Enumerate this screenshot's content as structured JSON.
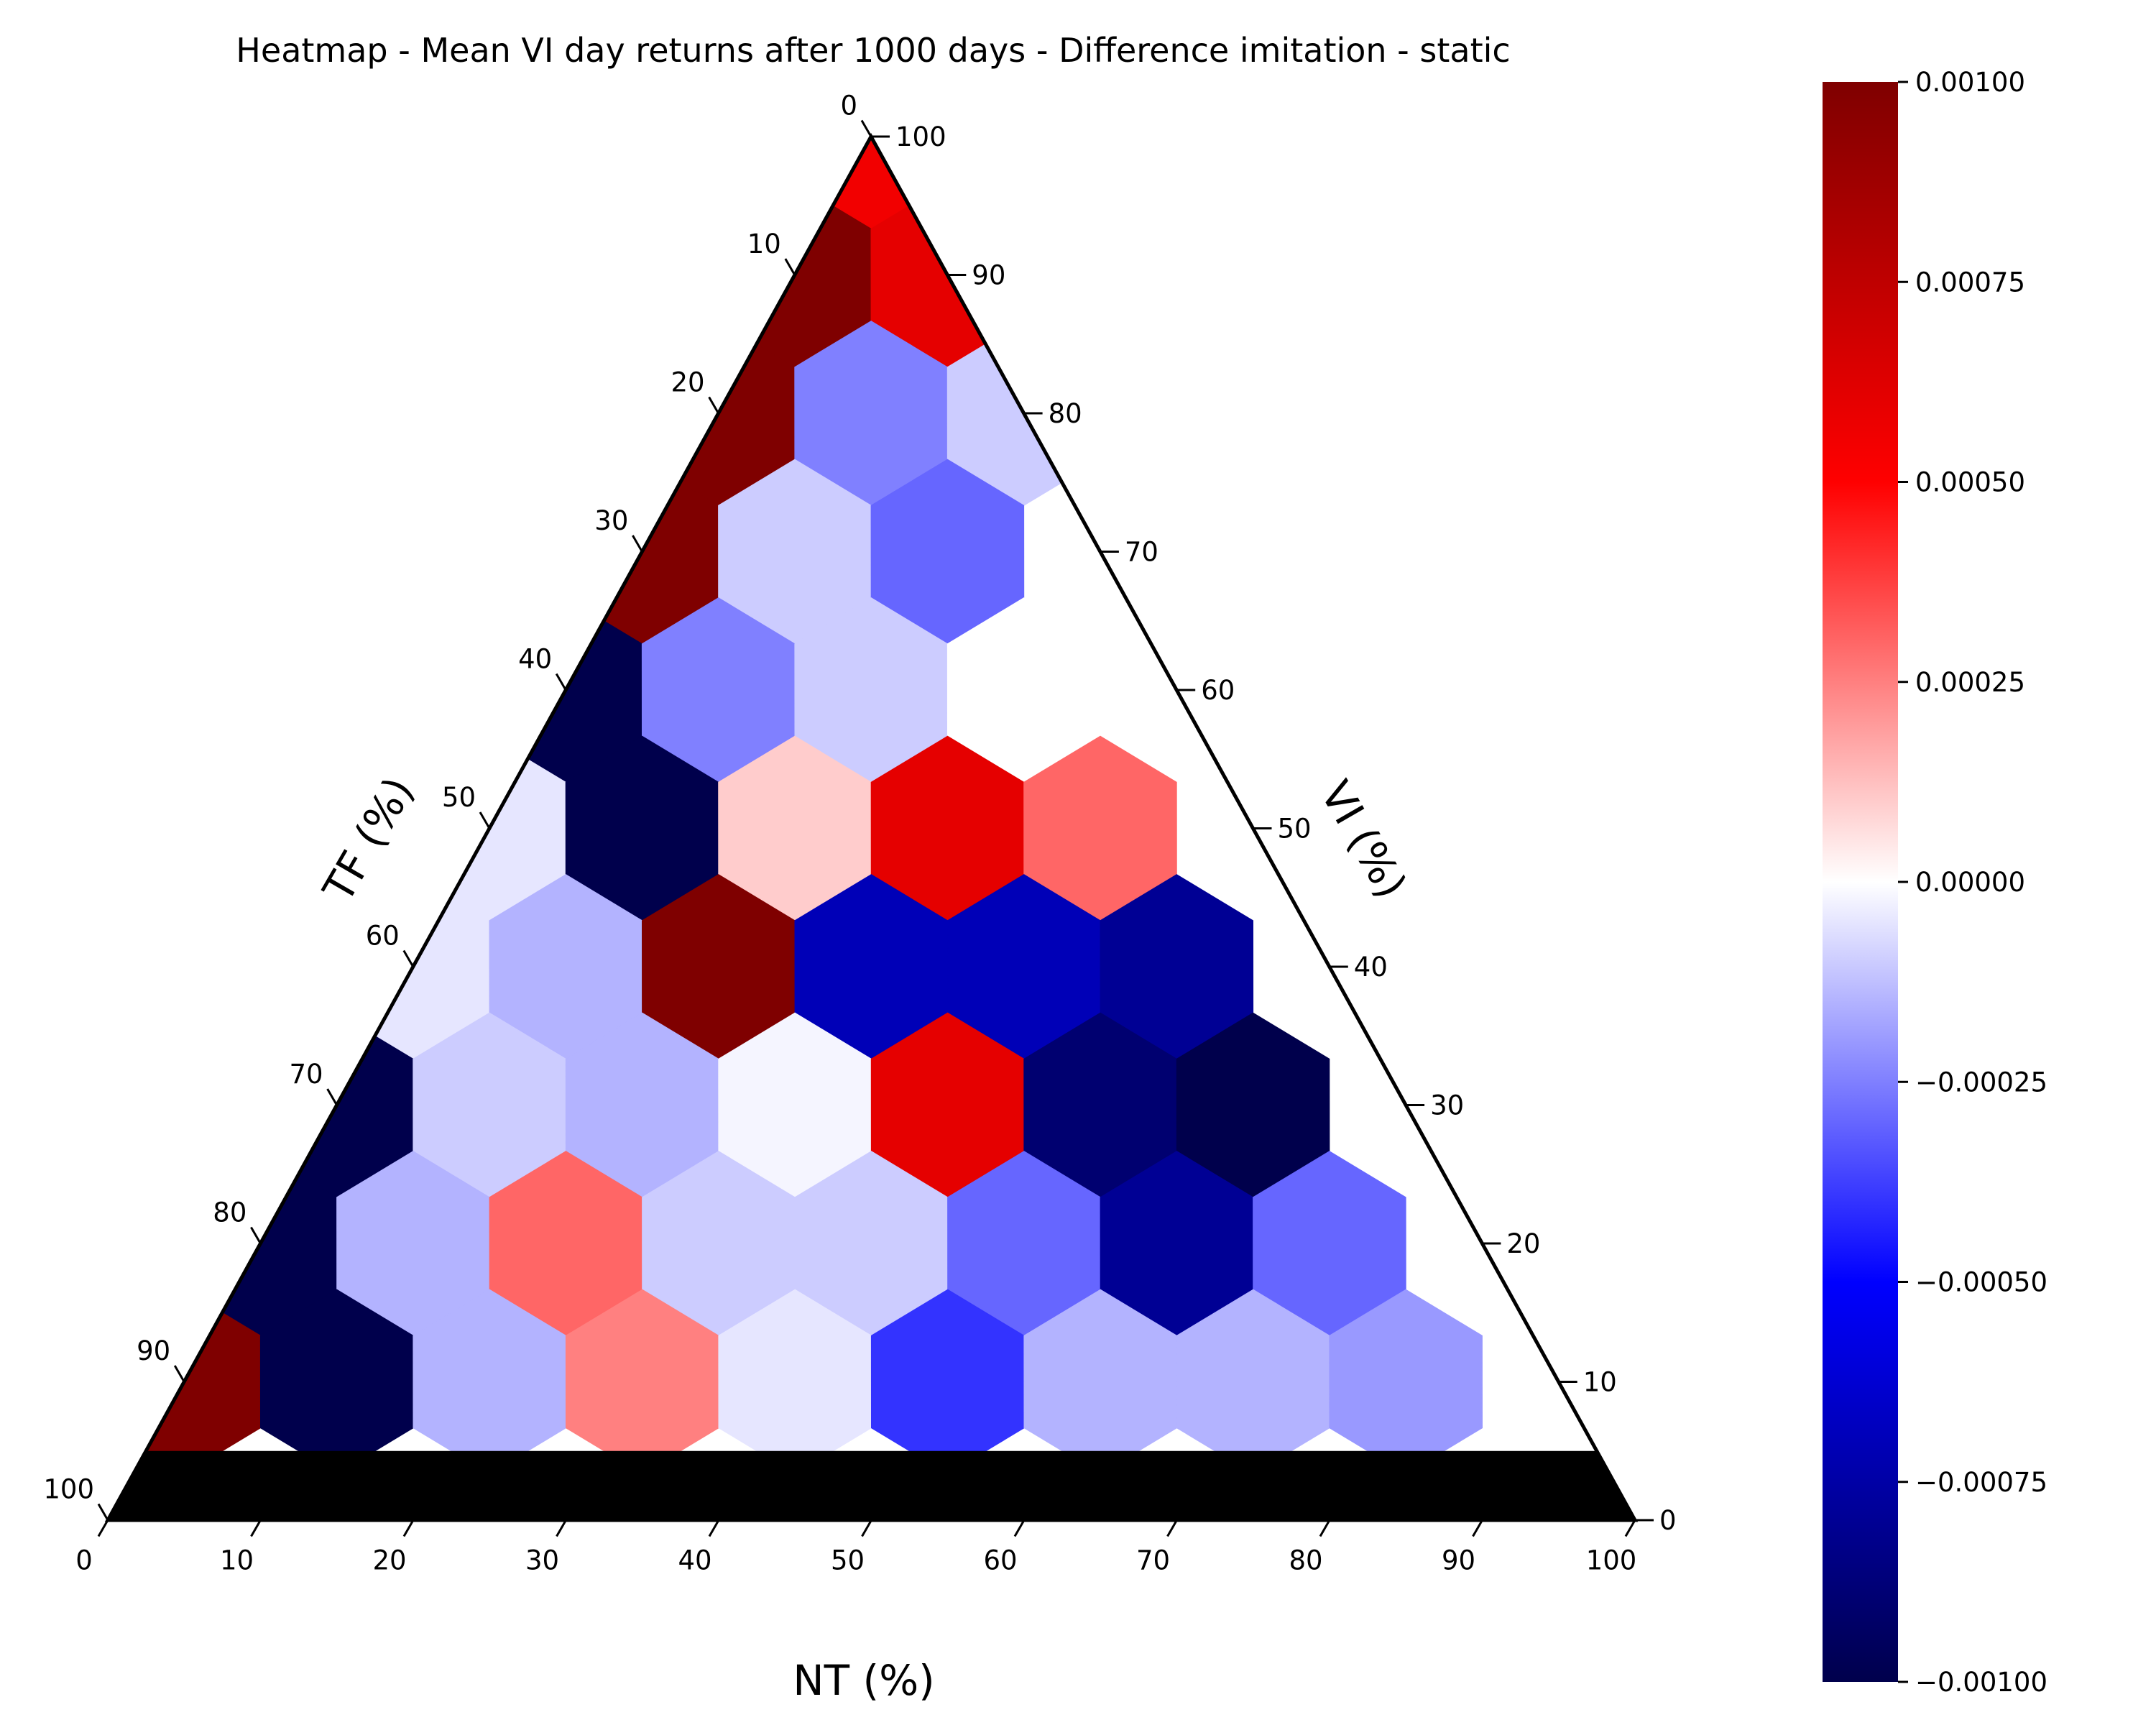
{
  "chart_data": {
    "type": "heatmap",
    "subtype": "ternary",
    "title": "Heatmap - Mean VI day returns after 1000 days - Difference imitation - static",
    "axes": {
      "bottom": {
        "label": "NT (%)",
        "ticks": [
          0,
          10,
          20,
          30,
          40,
          50,
          60,
          70,
          80,
          90,
          100
        ]
      },
      "left": {
        "label": "TF (%)",
        "ticks": [
          0,
          10,
          20,
          30,
          40,
          50,
          60,
          70,
          80,
          90,
          100
        ]
      },
      "right": {
        "label": "VI (%)",
        "ticks": [
          0,
          10,
          20,
          30,
          40,
          50,
          60,
          70,
          80,
          90,
          100
        ]
      }
    },
    "grid_step": 10,
    "colorscale": "seismic",
    "colorbar": {
      "min": -0.001,
      "max": 0.001,
      "ticks": [
        "0.00100",
        "0.00075",
        "0.00050",
        "0.00025",
        "0.00000",
        "−0.00025",
        "−0.00050",
        "−0.00075",
        "−0.00100"
      ],
      "tick_values": [
        0.001,
        0.00075,
        0.0005,
        0.00025,
        0.0,
        -0.00025,
        -0.0005,
        -0.00075,
        -0.001
      ]
    },
    "missing_color": "#000000",
    "missing_region": "VI (%) = 0",
    "cells": [
      {
        "nt": 0,
        "vi": 100,
        "value": 0.00055
      },
      {
        "nt": 0,
        "vi": 90,
        "value": 0.001
      },
      {
        "nt": 10,
        "vi": 90,
        "value": 0.0006
      },
      {
        "nt": 0,
        "vi": 80,
        "value": 0.001
      },
      {
        "nt": 10,
        "vi": 80,
        "value": -0.00025
      },
      {
        "nt": 20,
        "vi": 80,
        "value": -0.0001
      },
      {
        "nt": 0,
        "vi": 70,
        "value": 0.001
      },
      {
        "nt": 10,
        "vi": 70,
        "value": -0.0001
      },
      {
        "nt": 20,
        "vi": 70,
        "value": -0.0003
      },
      {
        "nt": 0,
        "vi": 60,
        "value": -0.001
      },
      {
        "nt": 10,
        "vi": 60,
        "value": -0.00025
      },
      {
        "nt": 20,
        "vi": 60,
        "value": -0.0001
      },
      {
        "nt": 30,
        "vi": 60,
        "value": 0.0
      },
      {
        "nt": 0,
        "vi": 50,
        "value": -5e-05
      },
      {
        "nt": 10,
        "vi": 50,
        "value": -0.001
      },
      {
        "nt": 20,
        "vi": 50,
        "value": 0.0001
      },
      {
        "nt": 30,
        "vi": 50,
        "value": 0.0006
      },
      {
        "nt": 40,
        "vi": 50,
        "value": 0.0003
      },
      {
        "nt": 0,
        "vi": 40,
        "value": -5e-05
      },
      {
        "nt": 10,
        "vi": 40,
        "value": -0.00015
      },
      {
        "nt": 20,
        "vi": 40,
        "value": 0.001
      },
      {
        "nt": 30,
        "vi": 40,
        "value": -0.0007
      },
      {
        "nt": 40,
        "vi": 40,
        "value": -0.0007
      },
      {
        "nt": 50,
        "vi": 40,
        "value": -0.0008
      },
      {
        "nt": 0,
        "vi": 30,
        "value": -0.001
      },
      {
        "nt": 10,
        "vi": 30,
        "value": -0.0001
      },
      {
        "nt": 20,
        "vi": 30,
        "value": -0.00015
      },
      {
        "nt": 30,
        "vi": 30,
        "value": -2e-05
      },
      {
        "nt": 40,
        "vi": 30,
        "value": 0.0006
      },
      {
        "nt": 50,
        "vi": 30,
        "value": -0.0009
      },
      {
        "nt": 60,
        "vi": 30,
        "value": -0.001
      },
      {
        "nt": 0,
        "vi": 20,
        "value": -0.001
      },
      {
        "nt": 10,
        "vi": 20,
        "value": -0.00015
      },
      {
        "nt": 20,
        "vi": 20,
        "value": 0.0003
      },
      {
        "nt": 30,
        "vi": 20,
        "value": -0.0001
      },
      {
        "nt": 40,
        "vi": 20,
        "value": -0.0001
      },
      {
        "nt": 50,
        "vi": 20,
        "value": -0.0003
      },
      {
        "nt": 60,
        "vi": 20,
        "value": -0.0008
      },
      {
        "nt": 70,
        "vi": 20,
        "value": -0.0003
      },
      {
        "nt": 0,
        "vi": 10,
        "value": 0.001
      },
      {
        "nt": 10,
        "vi": 10,
        "value": -0.001
      },
      {
        "nt": 20,
        "vi": 10,
        "value": -0.00015
      },
      {
        "nt": 30,
        "vi": 10,
        "value": 0.00025
      },
      {
        "nt": 40,
        "vi": 10,
        "value": -5e-05
      },
      {
        "nt": 50,
        "vi": 10,
        "value": -0.0004
      },
      {
        "nt": 60,
        "vi": 10,
        "value": -0.00015
      },
      {
        "nt": 70,
        "vi": 10,
        "value": -0.00015
      },
      {
        "nt": 80,
        "vi": 10,
        "value": -0.0002
      }
    ]
  }
}
